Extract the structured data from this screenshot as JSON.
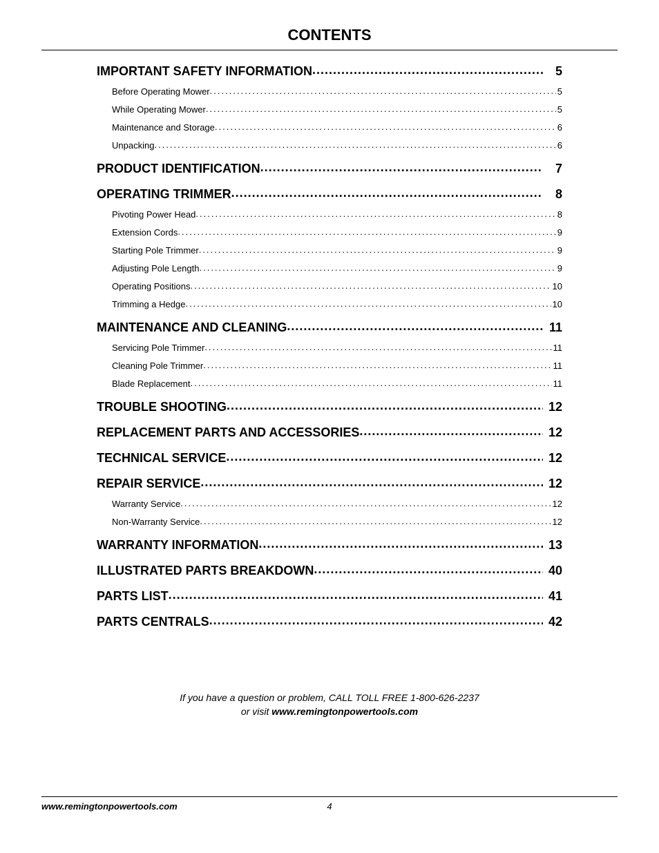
{
  "page_title": "CONTENTS",
  "toc": [
    {
      "level": 1,
      "title": "IMPORTANT SAFETY INFORMATION",
      "page": "5"
    },
    {
      "level": 2,
      "title": "Before Operating Mower",
      "page": "5"
    },
    {
      "level": 2,
      "title": "While Operating Mower",
      "page": "5"
    },
    {
      "level": 2,
      "title": "Maintenance and Storage",
      "page": "6"
    },
    {
      "level": 2,
      "title": "Unpacking",
      "page": "6"
    },
    {
      "level": 1,
      "title": "PRODUCT IDENTIFICATION",
      "page": "7"
    },
    {
      "level": 1,
      "title": "OPERATING TRIMMER",
      "page": "8"
    },
    {
      "level": 2,
      "title": "Pivoting Power Head",
      "page": "8"
    },
    {
      "level": 2,
      "title": "Extension Cords",
      "page": "9"
    },
    {
      "level": 2,
      "title": "Starting Pole Trimmer",
      "page": "9"
    },
    {
      "level": 2,
      "title": "Adjusting Pole Length",
      "page": "9"
    },
    {
      "level": 2,
      "title": "Operating Positions",
      "page": "10"
    },
    {
      "level": 2,
      "title": "Trimming a Hedge",
      "page": "10"
    },
    {
      "level": 1,
      "title": "MAINTENANCE AND CLEANING",
      "page": "11"
    },
    {
      "level": 2,
      "title": "Servicing Pole Trimmer",
      "page": "11"
    },
    {
      "level": 2,
      "title": "Cleaning Pole Trimmer",
      "page": "11"
    },
    {
      "level": 2,
      "title": "Blade Replacement",
      "page": "11"
    },
    {
      "level": 1,
      "title": "TROUBLE SHOOTING",
      "page": "12"
    },
    {
      "level": 1,
      "title": "REPLACEMENT PARTS AND ACCESSORIES",
      "page": "12"
    },
    {
      "level": 1,
      "title": "TECHNICAL SERVICE",
      "page": "12"
    },
    {
      "level": 1,
      "title": "REPAIR SERVICE",
      "page": "12"
    },
    {
      "level": 2,
      "title": "Warranty Service",
      "page": "12"
    },
    {
      "level": 2,
      "title": "Non-Warranty Service",
      "page": "12"
    },
    {
      "level": 1,
      "title": "WARRANTY INFORMATION",
      "page": "13"
    },
    {
      "level": 1,
      "title": "ILLUSTRATED PARTS BREAKDOWN",
      "page": "40"
    },
    {
      "level": 1,
      "title": "PARTS LIST",
      "page": "41"
    },
    {
      "level": 1,
      "title": "PARTS CENTRALS",
      "page": "42"
    }
  ],
  "help": {
    "line1_prefix": "If you have a question or problem, CALL TOLL FREE ",
    "phone": "1-800-626-2237",
    "line2_prefix": "or visit ",
    "url": "www.remingtonpowertools.com"
  },
  "footer": {
    "url": "www.remingtonpowertools.com",
    "page_number": "4"
  },
  "colors": {
    "text": "#000000",
    "background": "#ffffff",
    "rule": "#000000"
  },
  "typography": {
    "title_fontsize": 22,
    "heading_fontsize": 18,
    "sub_fontsize": 13,
    "help_fontsize": 14,
    "footer_fontsize": 13
  }
}
